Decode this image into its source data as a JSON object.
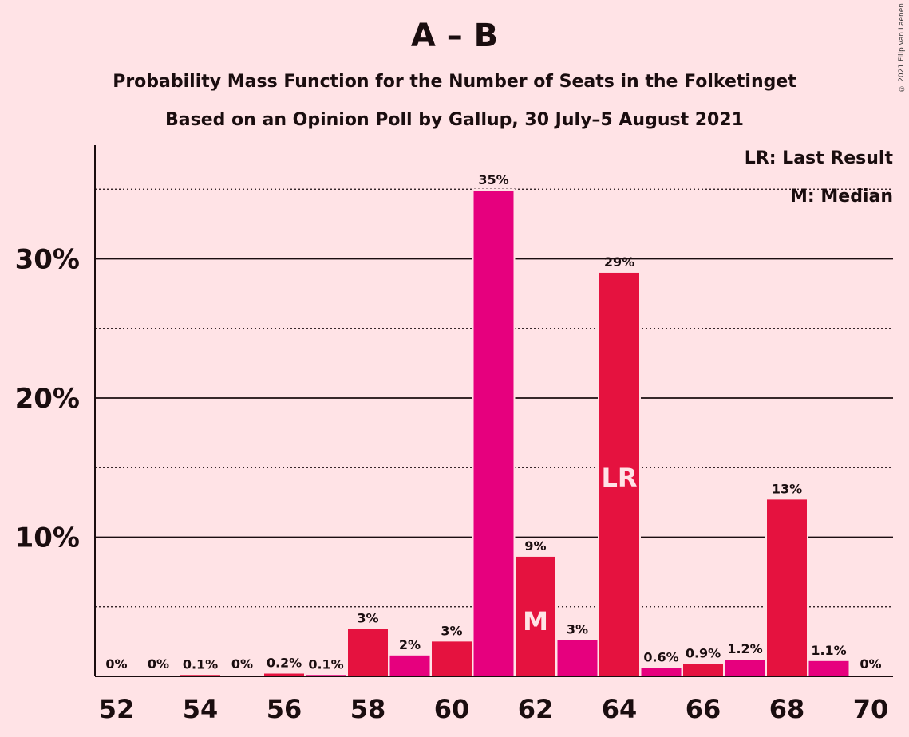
{
  "title": "A – B",
  "subtitle1": "Probability Mass Function for the Number of Seats in the Folketinget",
  "subtitle2": "Based on an Opinion Poll by Gallup, 30 July–5 August 2021",
  "legend": {
    "last_result": "LR: Last Result",
    "median": "M: Median"
  },
  "copyright": "© 2021 Filip van Laenen",
  "chart_data": {
    "type": "bar",
    "x": [
      52,
      53,
      54,
      55,
      56,
      57,
      58,
      59,
      60,
      61,
      62,
      63,
      64,
      65,
      66,
      67,
      68,
      69,
      70
    ],
    "values": [
      0,
      0,
      0.1,
      0,
      0.2,
      0.1,
      3.4,
      1.5,
      2.5,
      34.9,
      8.6,
      2.6,
      29.0,
      0.6,
      0.9,
      1.2,
      12.7,
      1.1,
      0
    ],
    "value_labels": [
      "0%",
      "0%",
      "0.1%",
      "0%",
      "0.2%",
      "0.1%",
      "3%",
      "2%",
      "3%",
      "35%",
      "9%",
      "3%",
      "29%",
      "0.6%",
      "0.9%",
      "1.2%",
      "13%",
      "1.1%",
      "0%"
    ],
    "x_tick_labels": [
      "52",
      "54",
      "56",
      "58",
      "60",
      "62",
      "64",
      "66",
      "68",
      "70"
    ],
    "y_ticks": [
      10,
      20,
      30
    ],
    "y_tick_labels": [
      "10%",
      "20%",
      "30%"
    ],
    "y_minor_gridlines": [
      5,
      15,
      25,
      35
    ],
    "ylim": [
      0,
      38
    ],
    "median_seat": 62,
    "median_marker": "M",
    "last_result_seat": 64,
    "last_result_marker": "LR",
    "colors": {
      "even": "#e5123f",
      "odd": "#e6007e",
      "background": "#ffe3e6",
      "axis": "#1a0d0f"
    }
  }
}
